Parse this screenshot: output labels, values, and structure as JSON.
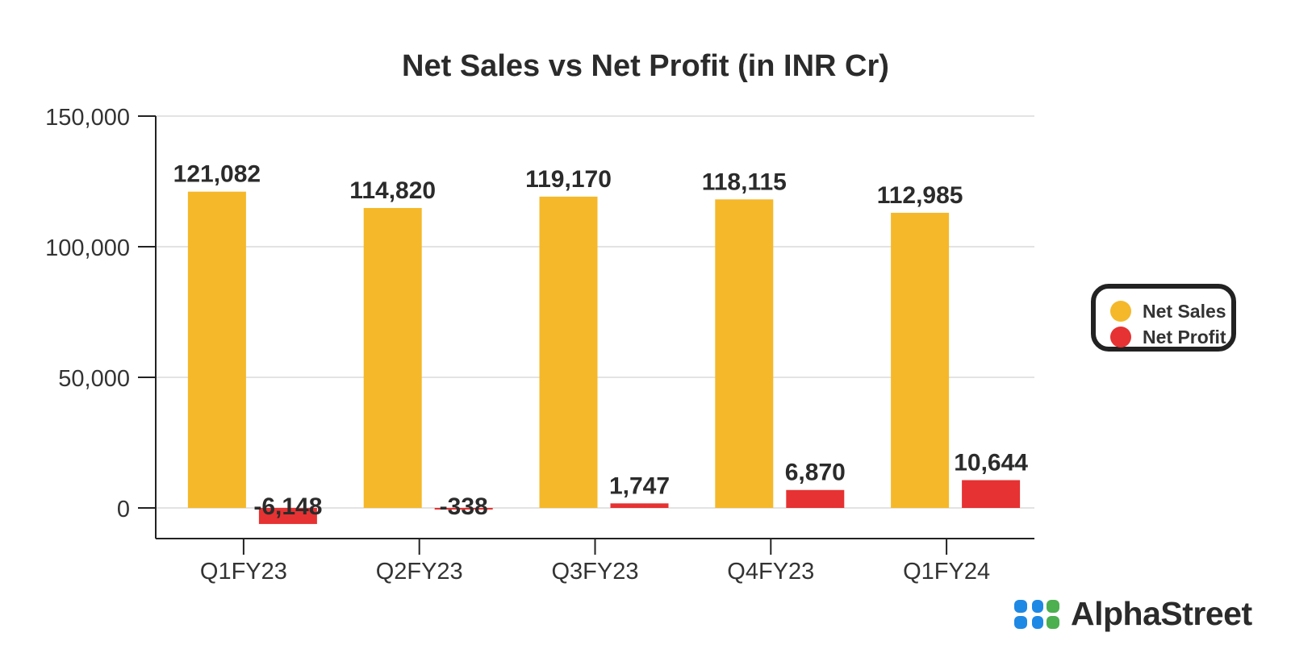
{
  "chart_data": {
    "type": "bar",
    "title": "Net Sales vs Net Profit (in INR Cr)",
    "categories": [
      "Q1FY23",
      "Q2FY23",
      "Q3FY23",
      "Q4FY23",
      "Q1FY24"
    ],
    "series": [
      {
        "name": "Net Sales",
        "color": "#F5B82A",
        "values": [
          121082,
          114820,
          119170,
          118115,
          112985
        ],
        "labels": [
          "121,082",
          "114,820",
          "119,170",
          "118,115",
          "112,985"
        ]
      },
      {
        "name": "Net Profit",
        "color": "#E63232",
        "values": [
          -6148,
          -338,
          1747,
          6870,
          10644
        ],
        "labels": [
          "-6,148",
          "-338",
          "1,747",
          "6,870",
          "10,644"
        ]
      }
    ],
    "ylim": [
      -12000,
      150000
    ],
    "yticks": [
      0,
      50000,
      100000,
      150000
    ],
    "ytick_labels": [
      "0",
      "50,000",
      "100,000",
      "150,000"
    ],
    "grid": true,
    "legend_position": "right"
  },
  "brand": {
    "name": "AlphaStreet",
    "logo_colors": [
      "#1E88E5",
      "#4CAF50"
    ]
  }
}
